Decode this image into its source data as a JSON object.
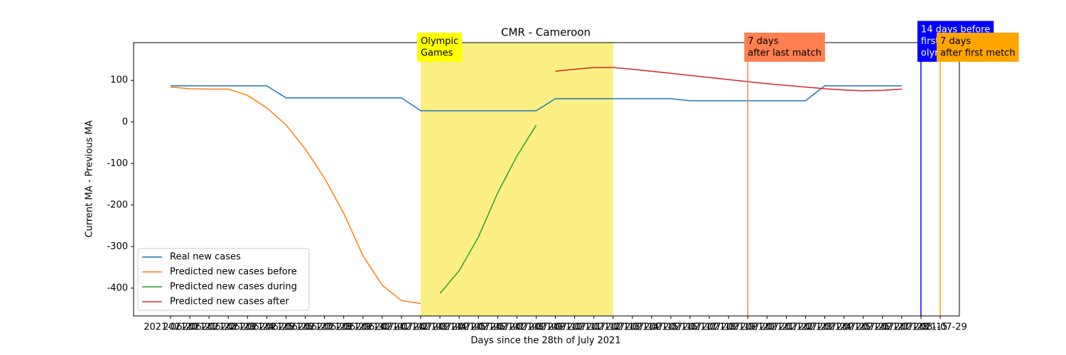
{
  "chart_data": {
    "type": "line",
    "title": "CMR - Cameroon",
    "x_label": "Days since the 28th of July 2021",
    "y_label": "Current MA - Previous MA",
    "categories": [
      "2021-06-20",
      "2021-06-21",
      "2021-06-22",
      "2021-06-23",
      "2021-06-24",
      "2021-06-25",
      "2021-06-26",
      "2021-06-27",
      "2021-06-28",
      "2021-06-29",
      "2021-06-30",
      "2021-07-01",
      "2021-07-02",
      "2021-07-03",
      "2021-07-04",
      "2021-07-05",
      "2021-07-06",
      "2021-07-07",
      "2021-07-08",
      "2021-07-09",
      "2021-07-10",
      "2021-07-11",
      "2021-07-12",
      "2021-07-13",
      "2021-07-14",
      "2021-07-15",
      "2021-07-16",
      "2021-07-17",
      "2021-07-18",
      "2021-07-19",
      "2021-07-20",
      "2021-07-21",
      "2021-07-22",
      "2021-07-23",
      "2021-07-24",
      "2021-07-25",
      "2021-07-26",
      "2021-07-27",
      "2021-07-28",
      "2021-08-15",
      "2021-07-29"
    ],
    "series": [
      {
        "name": "Real new cases",
        "color": "#1f77b4",
        "values": [
          87,
          87,
          87,
          87,
          87,
          87,
          58,
          58,
          58,
          58,
          58,
          58,
          58,
          27,
          27,
          27,
          27,
          27,
          27,
          27,
          56,
          56,
          56,
          56,
          56,
          56,
          56,
          51,
          51,
          51,
          51,
          51,
          51,
          51,
          87,
          87,
          87,
          87,
          87,
          null,
          null
        ]
      },
      {
        "name": "Predicted new cases before",
        "color": "#ff7f0e",
        "values": [
          84,
          80,
          79,
          79,
          64,
          34,
          -7,
          -65,
          -135,
          -220,
          -322,
          -393,
          -430,
          -437,
          null,
          null,
          null,
          null,
          null,
          null,
          null,
          null,
          null,
          null,
          null,
          null,
          null,
          null,
          null,
          null,
          null,
          null,
          null,
          null,
          null,
          null,
          null,
          null,
          null,
          null,
          null
        ]
      },
      {
        "name": "Predicted new cases during",
        "color": "#2ca02c",
        "values": [
          null,
          null,
          null,
          null,
          null,
          null,
          null,
          null,
          null,
          null,
          null,
          null,
          null,
          null,
          -413,
          -358,
          -277,
          -171,
          -82,
          -8,
          null,
          null,
          null,
          null,
          null,
          null,
          null,
          null,
          null,
          null,
          null,
          null,
          null,
          null,
          null,
          null,
          null,
          null,
          null,
          null,
          null
        ]
      },
      {
        "name": "Predicted new cases after",
        "color": "#d62728",
        "values": [
          null,
          null,
          null,
          null,
          null,
          null,
          null,
          null,
          null,
          null,
          null,
          null,
          null,
          null,
          null,
          null,
          null,
          null,
          null,
          null,
          122,
          127,
          131,
          131,
          127,
          122,
          117,
          112,
          107,
          102,
          97,
          92,
          88,
          84,
          80,
          77,
          75,
          76,
          79,
          null,
          null
        ]
      }
    ],
    "ylim": [
      -467,
      191
    ],
    "yticks": [
      -400,
      -300,
      -200,
      -100,
      0,
      100
    ],
    "legend": "lower left",
    "span": {
      "start": "2021-07-03",
      "end": "2021-07-13",
      "color": "#fcef83",
      "label_lines": [
        "Olympic",
        "Games"
      ],
      "label_color": "#ffff00"
    },
    "vlines": [
      {
        "x": "2021-07-20",
        "color": "#ff7f50",
        "label_lines": [
          "7 days",
          "after last match"
        ],
        "text_color": "#000000"
      },
      {
        "x": "2021-08-15",
        "color": "#0000ff",
        "label_lines": [
          "14 days before",
          "first match of",
          "olympics"
        ],
        "text_color": "#ffffff"
      },
      {
        "x": "2021-07-29",
        "color": "#ffa500",
        "label_lines": [
          "7 days",
          "after first metch"
        ],
        "text_color": "#000000"
      }
    ]
  }
}
